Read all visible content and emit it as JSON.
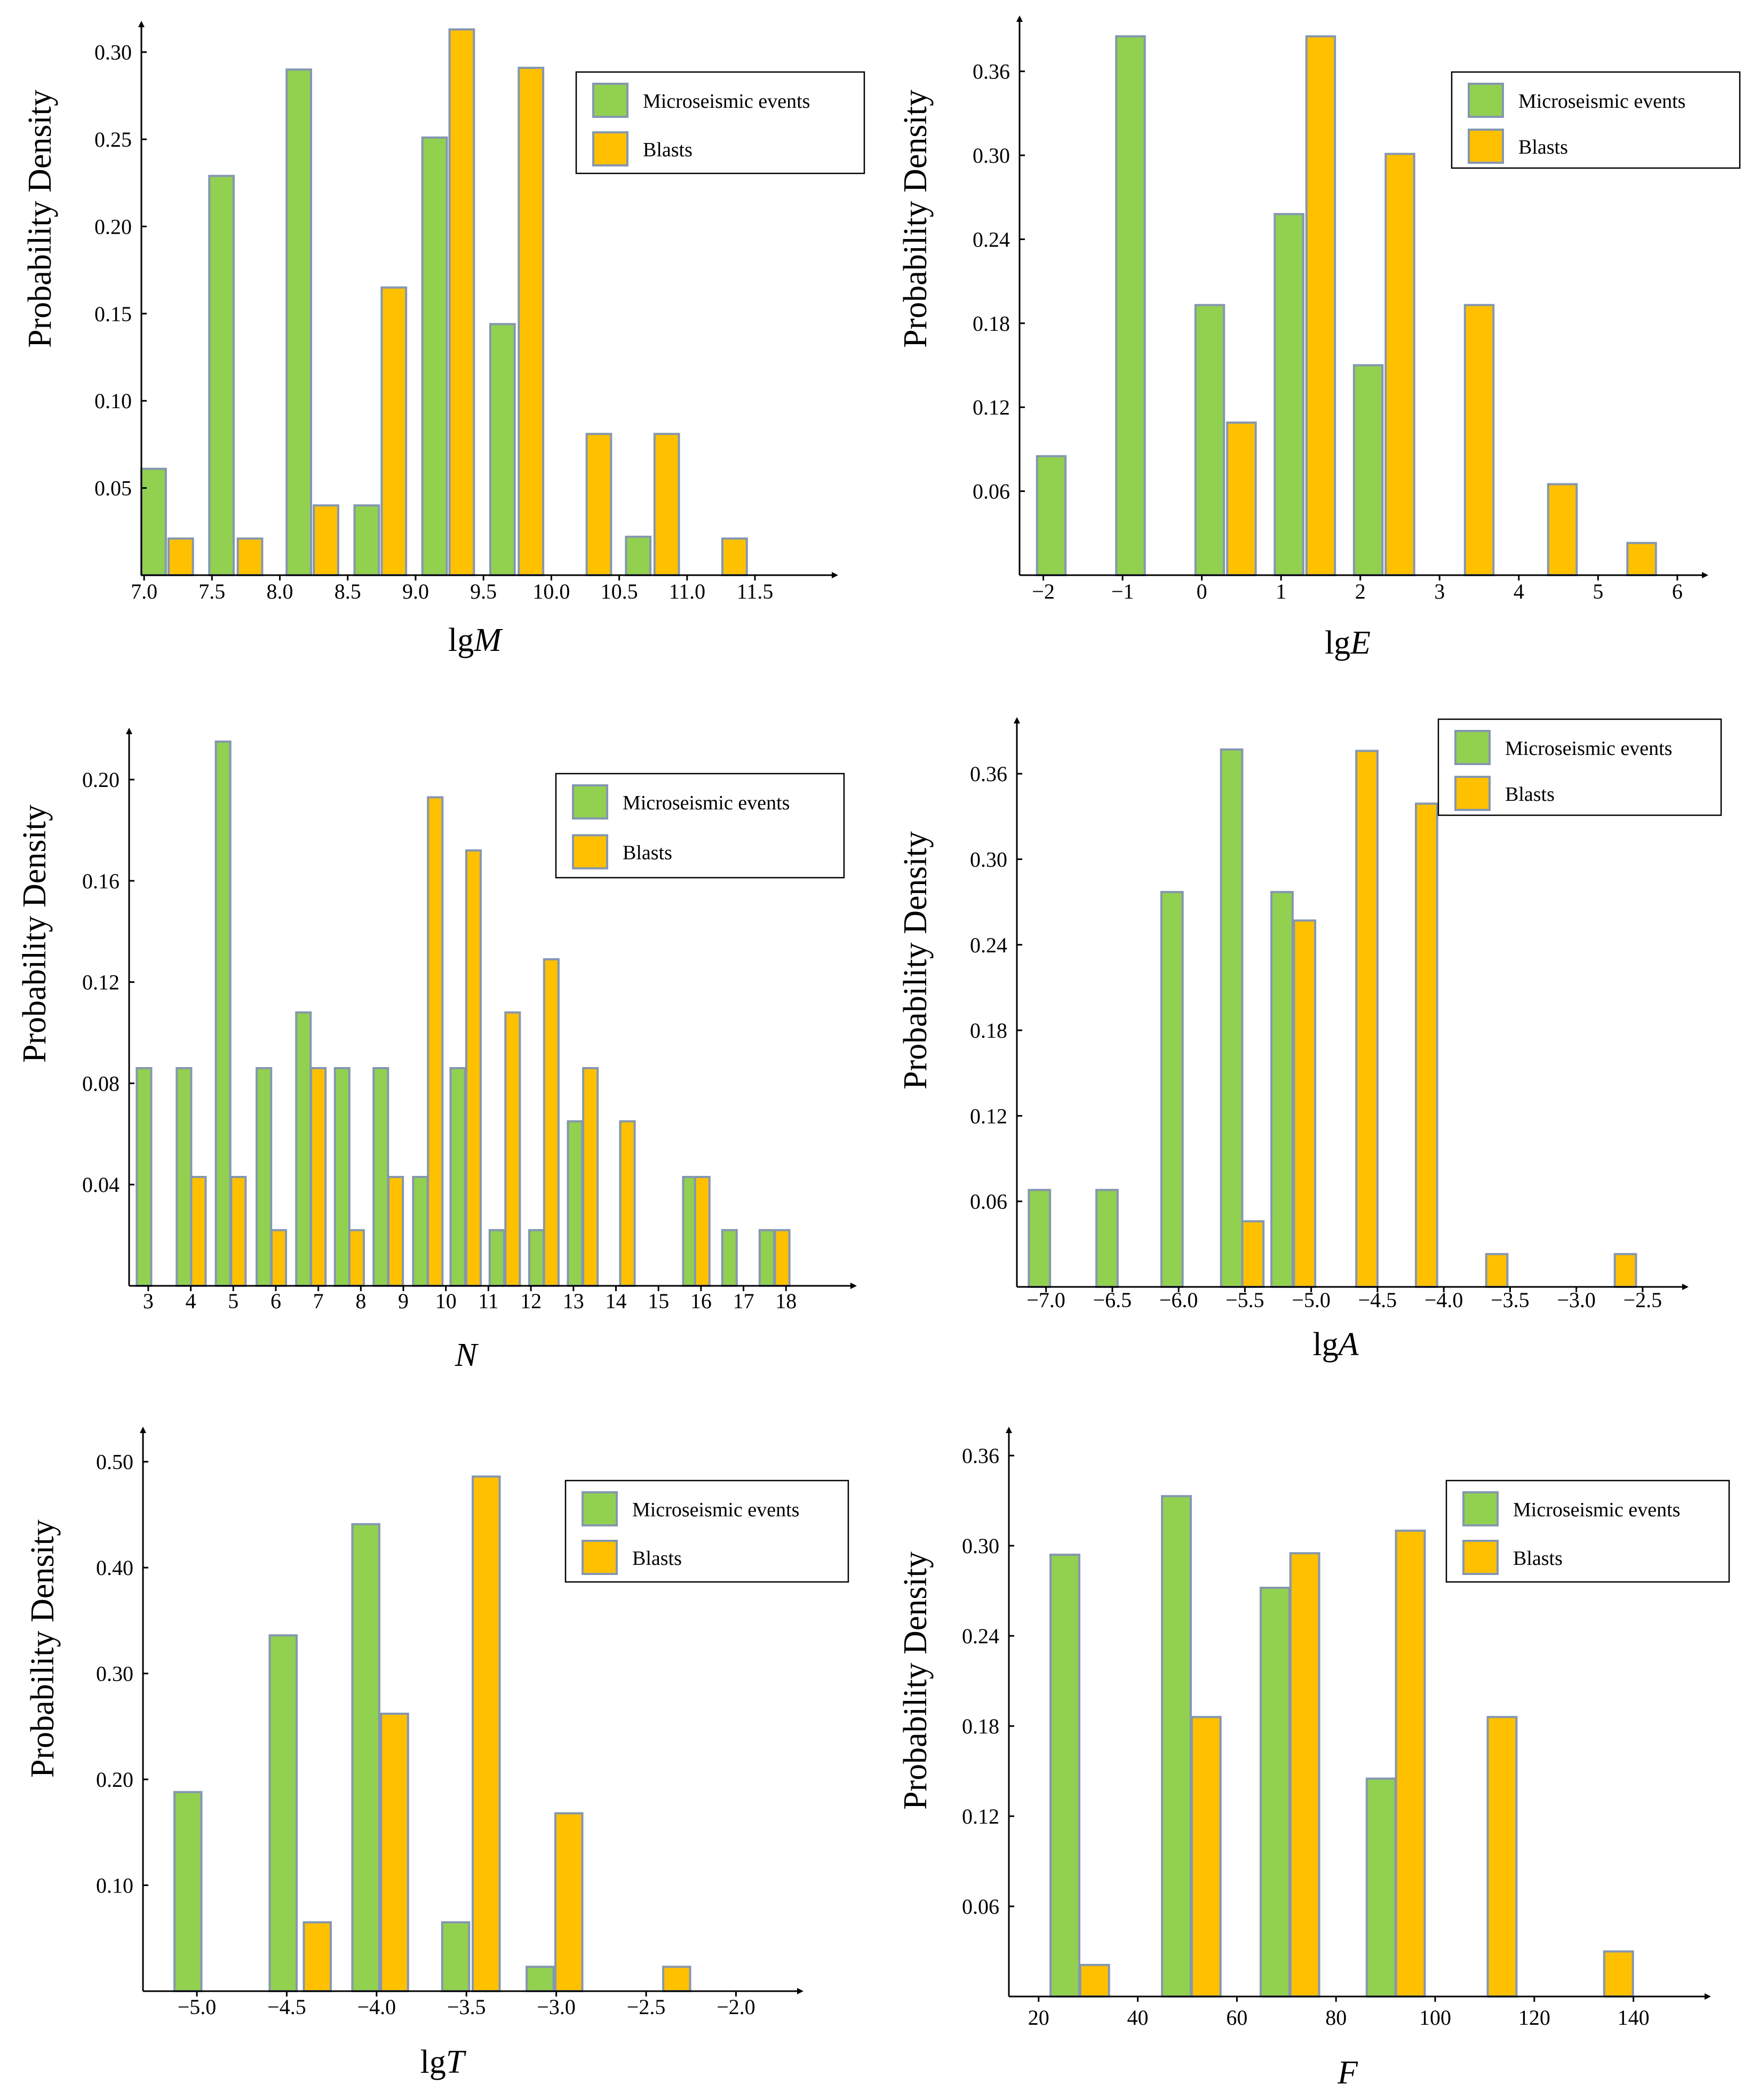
{
  "colors": {
    "microseismic": "#92d050",
    "blasts": "#ffc000",
    "bar_border": "#8497b0",
    "axis": "#000000"
  },
  "legend": {
    "microseismic": "Microseismic events",
    "blasts": "Blasts"
  },
  "chart_data": [
    {
      "id": "lgM",
      "type": "bar",
      "ylabel": "Probability Density",
      "xlabel_prefix": "lg",
      "xlabel_var": "M",
      "xlim": [
        6.98,
        12.05
      ],
      "ylim": [
        0,
        0.31
      ],
      "xticks": [
        7.0,
        7.5,
        8.0,
        8.5,
        9.0,
        9.5,
        10.0,
        10.5,
        11.0,
        11.5
      ],
      "xtick_labels": [
        "7.0",
        "7.5",
        "8.0",
        "8.5",
        "9.0",
        "9.5",
        "10.0",
        "10.5",
        "11.0",
        "11.5"
      ],
      "yticks": [
        0.05,
        0.1,
        0.15,
        0.2,
        0.25,
        0.3
      ],
      "ytick_labels": [
        "0.05",
        "0.10",
        "0.15",
        "0.20",
        "0.25",
        "0.30"
      ],
      "bar_width": 0.18,
      "series": [
        {
          "name": "Microseismic events",
          "x": [
            7.07,
            7.57,
            8.14,
            8.64,
            9.14,
            9.64,
            10.64
          ],
          "values": [
            0.061,
            0.229,
            0.29,
            0.04,
            0.251,
            0.144,
            0.022
          ]
        },
        {
          "name": "Blasts",
          "x": [
            7.27,
            7.78,
            8.34,
            8.84,
            9.34,
            9.85,
            10.35,
            10.85,
            11.35
          ],
          "values": [
            0.021,
            0.021,
            0.04,
            0.165,
            0.313,
            0.291,
            0.081,
            0.081,
            0.021
          ]
        }
      ]
    },
    {
      "id": "lgE",
      "type": "bar",
      "ylabel": "Probability Density",
      "xlabel_prefix": "lg",
      "xlabel_var": "E",
      "xlim": [
        -2.3,
        6.25
      ],
      "ylim": [
        0,
        0.39
      ],
      "xticks": [
        -2,
        -1,
        0,
        1,
        2,
        3,
        4,
        5,
        6
      ],
      "xtick_labels": [
        "−2",
        "−1",
        "0",
        "1",
        "2",
        "3",
        "4",
        "5",
        "6"
      ],
      "yticks": [
        0.06,
        0.12,
        0.18,
        0.24,
        0.3,
        0.36
      ],
      "ytick_labels": [
        "0.06",
        "0.12",
        "0.18",
        "0.24",
        "0.30",
        "0.36"
      ],
      "bar_width": 0.36,
      "series": [
        {
          "name": "Microseismic events",
          "x": [
            -1.9,
            -0.9,
            0.1,
            1.1,
            2.1
          ],
          "values": [
            0.085,
            0.385,
            0.193,
            0.258,
            0.15
          ]
        },
        {
          "name": "Blasts",
          "x": [
            0.5,
            1.5,
            2.5,
            3.5,
            4.55,
            5.55
          ],
          "values": [
            0.109,
            0.385,
            0.301,
            0.193,
            0.065,
            0.023
          ]
        }
      ]
    },
    {
      "id": "N",
      "type": "bar",
      "ylabel": "Probability Density",
      "xlabel_prefix": "",
      "xlabel_var": "N",
      "xlim": [
        2.55,
        18.9
      ],
      "ylim": [
        0,
        0.215
      ],
      "xticks": [
        3,
        4,
        5,
        6,
        7,
        8,
        9,
        10,
        11,
        12,
        13,
        14,
        15,
        16,
        17,
        18
      ],
      "xtick_labels": [
        "3",
        "4",
        "5",
        "6",
        "7",
        "8",
        "9",
        "10",
        "11",
        "12",
        "13",
        "14",
        "15",
        "16",
        "17",
        "18"
      ],
      "yticks": [
        0.04,
        0.08,
        0.12,
        0.16,
        0.2
      ],
      "ytick_labels": [
        "0.04",
        "0.08",
        "0.12",
        "0.16",
        "0.20"
      ],
      "bar_width": 0.34,
      "series": [
        {
          "name": "Microseismic events",
          "x": [
            2.9,
            3.84,
            4.76,
            5.72,
            6.65,
            7.56,
            8.47,
            9.4,
            10.28,
            11.2,
            12.13,
            13.04,
            15.75,
            16.67,
            17.55
          ],
          "values": [
            0.086,
            0.086,
            0.215,
            0.086,
            0.108,
            0.086,
            0.086,
            0.043,
            0.086,
            0.022,
            0.022,
            0.065,
            0.043,
            0.022,
            0.022
          ]
        },
        {
          "name": "Blasts",
          "x": [
            4.18,
            5.12,
            6.07,
            7.0,
            7.9,
            8.82,
            9.75,
            10.65,
            11.57,
            12.48,
            13.4,
            14.27,
            16.03,
            17.91
          ],
          "values": [
            0.043,
            0.043,
            0.022,
            0.086,
            0.022,
            0.043,
            0.193,
            0.172,
            0.108,
            0.129,
            0.086,
            0.065,
            0.043,
            0.022
          ]
        }
      ]
    },
    {
      "id": "lgA",
      "type": "bar",
      "ylabel": "Probability Density",
      "xlabel_prefix": "lg",
      "xlabel_var": "A",
      "xlim": [
        -7.22,
        -2.25
      ],
      "ylim": [
        0,
        0.39
      ],
      "xticks": [
        -7.0,
        -6.5,
        -6.0,
        -5.5,
        -5.0,
        -4.5,
        -4.0,
        -3.5,
        -3.0,
        -2.5
      ],
      "xtick_labels": [
        "−7.0",
        "−6.5",
        "−6.0",
        "−5.5",
        "−5.0",
        "−4.5",
        "−4.0",
        "−3.5",
        "−3.0",
        "−2.5"
      ],
      "yticks": [
        0.06,
        0.12,
        0.18,
        0.24,
        0.3,
        0.36
      ],
      "ytick_labels": [
        "0.06",
        "0.12",
        "0.18",
        "0.24",
        "0.30",
        "0.36"
      ],
      "bar_width": 0.16,
      "series": [
        {
          "name": "Microseismic events",
          "x": [
            -7.05,
            -6.54,
            -6.05,
            -5.6,
            -5.22
          ],
          "values": [
            0.068,
            0.068,
            0.277,
            0.377,
            0.277
          ]
        },
        {
          "name": "Blasts",
          "x": [
            -5.44,
            -5.05,
            -4.58,
            -4.13,
            -3.6,
            -2.63
          ],
          "values": [
            0.046,
            0.257,
            0.376,
            0.339,
            0.023,
            0.023
          ]
        }
      ]
    },
    {
      "id": "lgT",
      "type": "bar",
      "ylabel": "Probability Density",
      "xlabel_prefix": "lg",
      "xlabel_var": "T",
      "xlim": [
        -5.3,
        -1.85
      ],
      "ylim": [
        0,
        0.52
      ],
      "xticks": [
        -5.0,
        -4.5,
        -4.0,
        -3.5,
        -3.0,
        -2.5,
        -2.0
      ],
      "xtick_labels": [
        "−5.0",
        "−4.5",
        "−4.0",
        "−3.5",
        "−3.0",
        "−2.5",
        "−2.0"
      ],
      "yticks": [
        0.1,
        0.2,
        0.3,
        0.4,
        0.5
      ],
      "ytick_labels": [
        "0.10",
        "0.20",
        "0.30",
        "0.40",
        "0.50"
      ],
      "bar_width": 0.15,
      "series": [
        {
          "name": "Microseismic events",
          "x": [
            -5.05,
            -4.52,
            -4.06,
            -3.56,
            -3.09
          ],
          "values": [
            0.188,
            0.336,
            0.441,
            0.065,
            0.023
          ]
        },
        {
          "name": "Blasts",
          "x": [
            -4.33,
            -3.9,
            -3.39,
            -2.93,
            -2.33
          ],
          "values": [
            0.065,
            0.262,
            0.486,
            0.168,
            0.023
          ]
        }
      ]
    },
    {
      "id": "F",
      "type": "bar",
      "ylabel": "Probability Density",
      "xlabel_prefix": "",
      "xlabel_var": "F",
      "xlim": [
        14,
        155
      ],
      "ylim": [
        0,
        0.37
      ],
      "xticks": [
        20,
        40,
        60,
        80,
        100,
        120,
        140
      ],
      "xtick_labels": [
        "20",
        "40",
        "60",
        "80",
        "100",
        "120",
        "140"
      ],
      "yticks": [
        0.06,
        0.12,
        0.18,
        0.24,
        0.3,
        0.36
      ],
      "ytick_labels": [
        "0.06",
        "0.12",
        "0.18",
        "0.24",
        "0.30",
        "0.36"
      ],
      "bar_width": 5.8,
      "series": [
        {
          "name": "Microseismic events",
          "x": [
            25.3,
            47.8,
            67.7,
            89.1
          ],
          "values": [
            0.294,
            0.333,
            0.272,
            0.145
          ]
        },
        {
          "name": "Blasts",
          "x": [
            31.3,
            53.8,
            73.7,
            95.0,
            113.5,
            137.0
          ],
          "values": [
            0.021,
            0.186,
            0.295,
            0.31,
            0.186,
            0.03
          ]
        }
      ]
    }
  ]
}
